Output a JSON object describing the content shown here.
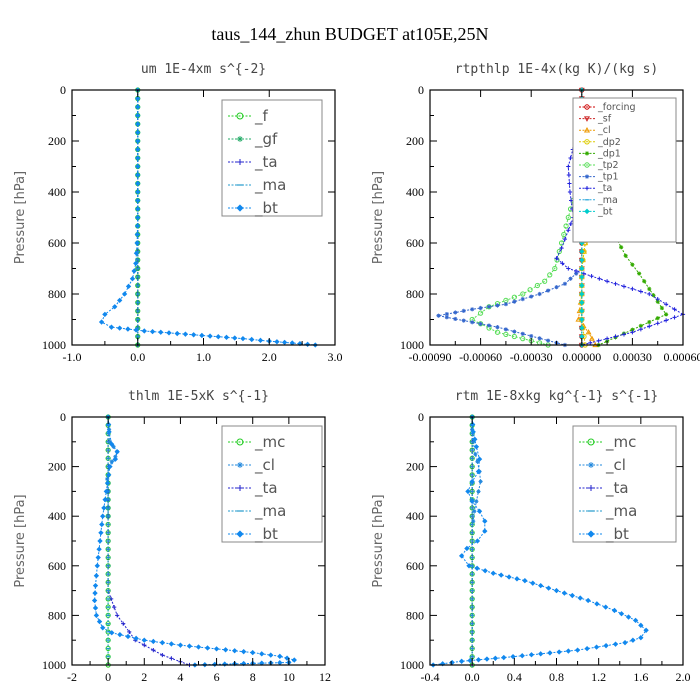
{
  "figure_title": "taus_144_zhun  BUDGET at105E,25N",
  "chart_data": [
    {
      "type": "line",
      "title": "um  1E-4xm s^{-2}",
      "ylabel": "Pressure [hPa]",
      "xlim": [
        -1.0,
        3.0
      ],
      "ylim": [
        1000,
        0
      ],
      "xticks": [
        -1.0,
        0.0,
        1.0,
        2.0,
        3.0
      ],
      "xtick_labels": [
        "-1.0",
        "0.0",
        "1.0",
        "2.0",
        "3.0"
      ],
      "yticks": [
        0,
        200,
        400,
        600,
        800,
        1000
      ],
      "ytick_labels": [
        "0",
        "200",
        "400",
        "600",
        "800",
        "1000"
      ],
      "legend": "top-right",
      "series": [
        {
          "name": "_f",
          "color": "#22cc22",
          "marker": "circle",
          "x": [
            0,
            0,
            0,
            0,
            0,
            0,
            0,
            0,
            0,
            0,
            0
          ],
          "y": [
            0,
            100,
            200,
            300,
            400,
            500,
            600,
            700,
            800,
            900,
            1000
          ]
        },
        {
          "name": "_gf",
          "color": "#22aa66",
          "marker": "star",
          "x": [
            0,
            0,
            0,
            0,
            0,
            0,
            0,
            0,
            0,
            0,
            0
          ],
          "y": [
            0,
            100,
            200,
            300,
            400,
            500,
            600,
            700,
            800,
            900,
            1000
          ]
        },
        {
          "name": "_ta",
          "color": "#2222cc",
          "marker": "plus",
          "x": [
            0,
            0,
            0,
            0,
            0,
            0,
            0,
            0,
            0,
            0,
            0
          ],
          "y": [
            0,
            100,
            200,
            300,
            400,
            500,
            600,
            700,
            800,
            900,
            1000
          ]
        },
        {
          "name": "_ma",
          "color": "#2299cc",
          "marker": "dash",
          "x": [
            0,
            0,
            0,
            0,
            0,
            0,
            0,
            0,
            0,
            0,
            0
          ],
          "y": [
            0,
            100,
            200,
            300,
            400,
            500,
            600,
            700,
            800,
            900,
            1000
          ]
        },
        {
          "name": "_bt",
          "color": "#1188ee",
          "marker": "diamond",
          "x": [
            0,
            0,
            0,
            0,
            0,
            -0.01,
            -0.03,
            -0.08,
            -0.2,
            -0.35,
            -0.5,
            -0.55,
            -0.4,
            0.1,
            0.6,
            1.1,
            1.6,
            2.0,
            2.35,
            2.7
          ],
          "y": [
            0,
            100,
            200,
            300,
            500,
            600,
            680,
            740,
            800,
            850,
            880,
            910,
            930,
            945,
            955,
            965,
            975,
            985,
            992,
            1000
          ]
        }
      ]
    },
    {
      "type": "line",
      "title": "rtpthlp  1E-4x(kg K)/(kg s)",
      "ylabel": "Pressure [hPa]",
      "xlim": [
        -0.0009,
        0.0006
      ],
      "ylim": [
        1000,
        0
      ],
      "xticks": [
        -0.0009,
        -0.0006,
        -0.0003,
        0.0,
        0.0003,
        0.0006
      ],
      "xtick_labels": [
        "-0.00090",
        "-0.00060",
        "-0.00030",
        "0.00000",
        "0.00030",
        "0.00060"
      ],
      "yticks": [
        0,
        200,
        400,
        600,
        800,
        1000
      ],
      "ytick_labels": [
        "0",
        "200",
        "400",
        "600",
        "800",
        "1000"
      ],
      "legend": "top-right",
      "series": [
        {
          "name": "_forcing",
          "color": "#cc0000",
          "marker": "circle",
          "x": [
            0,
            0,
            0,
            0,
            0,
            0,
            0,
            0,
            0,
            0,
            0
          ],
          "y": [
            0,
            100,
            200,
            300,
            400,
            500,
            600,
            700,
            800,
            900,
            1000
          ]
        },
        {
          "name": "_sf",
          "color": "#cc2222",
          "marker": "triangle-down",
          "x": [
            0,
            0,
            0,
            0,
            0,
            0,
            0,
            0,
            0,
            0,
            0
          ],
          "y": [
            0,
            100,
            200,
            300,
            400,
            500,
            600,
            700,
            800,
            900,
            1000
          ]
        },
        {
          "name": "_cl",
          "color": "#ee9900",
          "marker": "triangle-up",
          "x": [
            0,
            1e-05,
            4e-05,
            8e-05,
            0.0001,
            6e-05,
            2e-05,
            0,
            0,
            -2e-05,
            4e-05,
            8e-05
          ],
          "y": [
            100,
            150,
            200,
            300,
            400,
            500,
            600,
            700,
            800,
            900,
            950,
            1000
          ]
        },
        {
          "name": "_dp2",
          "color": "#ddcc00",
          "marker": "circle",
          "x": [
            0,
            2e-05,
            3e-05,
            4e-05,
            3e-05,
            2e-05,
            0,
            0,
            0,
            2e-05
          ],
          "y": [
            100,
            200,
            300,
            400,
            500,
            600,
            700,
            800,
            900,
            1000
          ]
        },
        {
          "name": "_dp1",
          "color": "#33aa00",
          "marker": "star",
          "x": [
            0,
            2e-05,
            5e-05,
            0.0001,
            0.00014,
            0.00018,
            0.00026,
            0.00034,
            0.0004,
            0.00045,
            0.0005,
            0.0003,
            0.0001
          ],
          "y": [
            120,
            180,
            250,
            350,
            450,
            550,
            650,
            720,
            780,
            830,
            880,
            940,
            1000
          ]
        },
        {
          "name": "_tp2",
          "color": "#55dd55",
          "marker": "circle",
          "x": [
            0,
            -2e-05,
            -4e-05,
            -8e-05,
            -0.00012,
            -0.00016,
            -0.00022,
            -0.00035,
            -0.00055,
            -0.00065,
            -0.0005,
            -0.0002
          ],
          "y": [
            200,
            300,
            400,
            500,
            600,
            700,
            750,
            800,
            850,
            900,
            950,
            1000
          ]
        },
        {
          "name": "_tp1",
          "color": "#3366cc",
          "marker": "star",
          "x": [
            0,
            -0.0001,
            -0.00025,
            -0.00045,
            -0.00065,
            -0.00085,
            -0.0005,
            -0.0001
          ],
          "y": [
            700,
            760,
            800,
            840,
            860,
            885,
            930,
            1000
          ]
        },
        {
          "name": "_ta",
          "color": "#2222dd",
          "marker": "plus",
          "x": [
            -2e-05,
            -4e-05,
            -8e-05,
            -7e-05,
            -5e-05,
            -8e-05,
            -0.00012,
            -0.00015,
            -8e-05,
            0.00015,
            0.0004,
            0.0006,
            0.0003,
            0
          ],
          "y": [
            120,
            200,
            300,
            400,
            500,
            550,
            620,
            660,
            700,
            750,
            800,
            880,
            950,
            1000
          ]
        },
        {
          "name": "_ma",
          "color": "#33aadd",
          "marker": "dash",
          "x": [
            0,
            0,
            0,
            0,
            0,
            0,
            0,
            0,
            0,
            0,
            0
          ],
          "y": [
            0,
            100,
            200,
            300,
            400,
            500,
            600,
            700,
            800,
            900,
            1000
          ]
        },
        {
          "name": "_bt",
          "color": "#00cccc",
          "marker": "diamond",
          "x": [
            0,
            0,
            0,
            0,
            0,
            0,
            0,
            0,
            0,
            0,
            0
          ],
          "y": [
            0,
            100,
            200,
            300,
            400,
            500,
            600,
            700,
            800,
            900,
            1000
          ]
        }
      ]
    },
    {
      "type": "line",
      "title": "thlm  1E-5xK s^{-1}",
      "ylabel": "Pressure [hPa]",
      "xlim": [
        -2,
        12
      ],
      "ylim": [
        1000,
        0
      ],
      "xticks": [
        -2,
        0,
        2,
        4,
        6,
        8,
        10,
        12
      ],
      "xtick_labels": [
        "-2",
        "0",
        "2",
        "4",
        "6",
        "8",
        "10",
        "12"
      ],
      "yticks": [
        0,
        200,
        400,
        600,
        800,
        1000
      ],
      "ytick_labels": [
        "0",
        "200",
        "400",
        "600",
        "800",
        "1000"
      ],
      "legend": "top-right",
      "series": [
        {
          "name": "_mc",
          "color": "#22cc22",
          "marker": "circle",
          "x": [
            0,
            0,
            0,
            0,
            0,
            0,
            0,
            0,
            0,
            0,
            0
          ],
          "y": [
            0,
            100,
            200,
            300,
            400,
            500,
            600,
            700,
            800,
            900,
            1000
          ]
        },
        {
          "name": "_cl",
          "color": "#2288dd",
          "marker": "star",
          "x": [
            0,
            0.05,
            0.1,
            0.3,
            0.5,
            0.4,
            0.2,
            0.05,
            -0.05,
            0,
            0
          ],
          "y": [
            0,
            50,
            100,
            120,
            140,
            160,
            180,
            200,
            250,
            300,
            400
          ]
        },
        {
          "name": "_ta",
          "color": "#2222cc",
          "marker": "plus",
          "x": [
            0,
            0,
            0,
            0,
            0,
            0,
            0,
            0,
            0.5,
            1.5,
            3.0,
            4.5
          ],
          "y": [
            0,
            100,
            200,
            300,
            400,
            500,
            600,
            700,
            800,
            900,
            960,
            1000
          ]
        },
        {
          "name": "_ma",
          "color": "#2299cc",
          "marker": "dash",
          "x": [
            0,
            0,
            0,
            0,
            0,
            0,
            0,
            0,
            0,
            0,
            0
          ],
          "y": [
            0,
            100,
            200,
            300,
            400,
            500,
            600,
            700,
            800,
            900,
            1000
          ]
        },
        {
          "name": "_bt",
          "color": "#1188ee",
          "marker": "diamond",
          "x": [
            0,
            0.05,
            0.2,
            0.5,
            0.4,
            0.1,
            -0.1,
            -0.3,
            -0.45,
            -0.6,
            -0.7,
            -0.75,
            -0.65,
            -0.3,
            0.2,
            2.0,
            4.0,
            6.0,
            8.0,
            9.5,
            10.3,
            10.0,
            7.0,
            4.8
          ],
          "y": [
            0,
            60,
            110,
            140,
            170,
            200,
            300,
            400,
            500,
            600,
            680,
            740,
            800,
            850,
            870,
            900,
            920,
            935,
            950,
            965,
            980,
            990,
            995,
            1000
          ]
        }
      ]
    },
    {
      "type": "line",
      "title": "rtm  1E-8xkg kg^{-1} s^{-1}",
      "ylabel": "Pressure [hPa]",
      "xlim": [
        -0.4,
        2.0
      ],
      "ylim": [
        1000,
        0
      ],
      "xticks": [
        -0.4,
        0.0,
        0.4,
        0.8,
        1.2,
        1.6,
        2.0
      ],
      "xtick_labels": [
        "-0.4",
        "0.0",
        "0.4",
        "0.8",
        "1.2",
        "1.6",
        "2.0"
      ],
      "yticks": [
        0,
        200,
        400,
        600,
        800,
        1000
      ],
      "ytick_labels": [
        "0",
        "200",
        "400",
        "600",
        "800",
        "1000"
      ],
      "legend": "top-right",
      "series": [
        {
          "name": "_mc",
          "color": "#22cc22",
          "marker": "circle",
          "x": [
            0,
            0,
            0,
            0,
            0,
            0,
            0,
            0,
            0,
            0,
            0
          ],
          "y": [
            0,
            100,
            200,
            300,
            400,
            500,
            600,
            700,
            800,
            900,
            1000
          ]
        },
        {
          "name": "_cl",
          "color": "#2288dd",
          "marker": "star",
          "x": [
            0,
            0,
            0.01,
            0.03,
            0.05,
            0.07,
            0.08,
            0.06,
            0.04,
            0.02,
            0.01
          ],
          "y": [
            0,
            50,
            100,
            150,
            180,
            220,
            260,
            300,
            340,
            380,
            420
          ]
        },
        {
          "name": "_ta",
          "color": "#2222cc",
          "marker": "plus",
          "x": [
            0,
            0,
            0,
            0,
            0,
            0,
            0,
            0,
            0,
            0,
            0
          ],
          "y": [
            0,
            100,
            200,
            300,
            400,
            500,
            600,
            700,
            800,
            900,
            1000
          ]
        },
        {
          "name": "_ma",
          "color": "#2299cc",
          "marker": "dash",
          "x": [
            0,
            0,
            0,
            0,
            0,
            0,
            0,
            0,
            0,
            0,
            0
          ],
          "y": [
            0,
            100,
            200,
            300,
            400,
            500,
            600,
            700,
            800,
            900,
            1000
          ]
        },
        {
          "name": "_bt",
          "color": "#1188ee",
          "marker": "diamond",
          "x": [
            0,
            0.01,
            0.04,
            0.07,
            0.06,
            0.0,
            -0.04,
            0.0,
            0.07,
            0.12,
            0.12,
            0.05,
            -0.05,
            -0.1,
            -0.03,
            0.2,
            0.5,
            0.8,
            1.1,
            1.35,
            1.55,
            1.65,
            1.6,
            1.45,
            1.0,
            0.3,
            -0.1,
            -0.37
          ],
          "y": [
            0,
            60,
            120,
            170,
            220,
            260,
            300,
            340,
            380,
            420,
            460,
            500,
            530,
            560,
            600,
            630,
            660,
            700,
            740,
            780,
            820,
            860,
            890,
            910,
            940,
            970,
            985,
            1000
          ]
        }
      ]
    }
  ]
}
